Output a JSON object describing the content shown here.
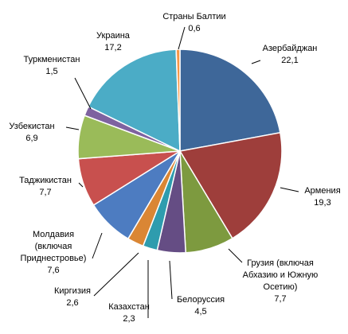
{
  "chart_data": {
    "type": "pie",
    "title": "",
    "series": [
      {
        "slices": [
          {
            "label": "Азербайджан",
            "value": 22.1,
            "value_text": "22,1",
            "color": "#3E6799"
          },
          {
            "label": "Армения",
            "value": 19.3,
            "value_text": "19,3",
            "color": "#9E3E3B"
          },
          {
            "label": "Грузия (включая Абхазию и Южную Осетию)",
            "label_lines": [
              "Грузия (включая",
              "Абхазию и Южную",
              "Осетию)"
            ],
            "value": 7.7,
            "value_text": "7,7",
            "color": "#7D9A3F"
          },
          {
            "label": "Белоруссия",
            "value": 4.5,
            "value_text": "4,5",
            "color": "#654D84"
          },
          {
            "label": "Казахстан",
            "value": 2.3,
            "value_text": "2,3",
            "color": "#2E9CAE"
          },
          {
            "label": "Киргизия",
            "value": 2.6,
            "value_text": "2,6",
            "color": "#DA8634"
          },
          {
            "label": "Молдавия (включая Приднестровье)",
            "label_lines": [
              "Молдавия",
              "(включая",
              "Приднестровье)"
            ],
            "value": 7.6,
            "value_text": "7,6",
            "color": "#4D7CC1"
          },
          {
            "label": "Таджикистан",
            "value": 7.7,
            "value_text": "7,7",
            "color": "#C8504E"
          },
          {
            "label": "Узбекистан",
            "value": 6.9,
            "value_text": "6,9",
            "color": "#9ABB59"
          },
          {
            "label": "Туркменистан",
            "value": 1.5,
            "value_text": "1,5",
            "color": "#7E62A0"
          },
          {
            "label": "Украина",
            "value": 17.2,
            "value_text": "17,2",
            "color": "#4BACC6"
          },
          {
            "label": "Страны Балтии",
            "value": 0.6,
            "value_text": "0,6",
            "color": "#F79646"
          }
        ]
      }
    ],
    "start": "top",
    "direction": "clockwise",
    "legend": "none",
    "data_labels": "outside-with-leader-lines"
  }
}
